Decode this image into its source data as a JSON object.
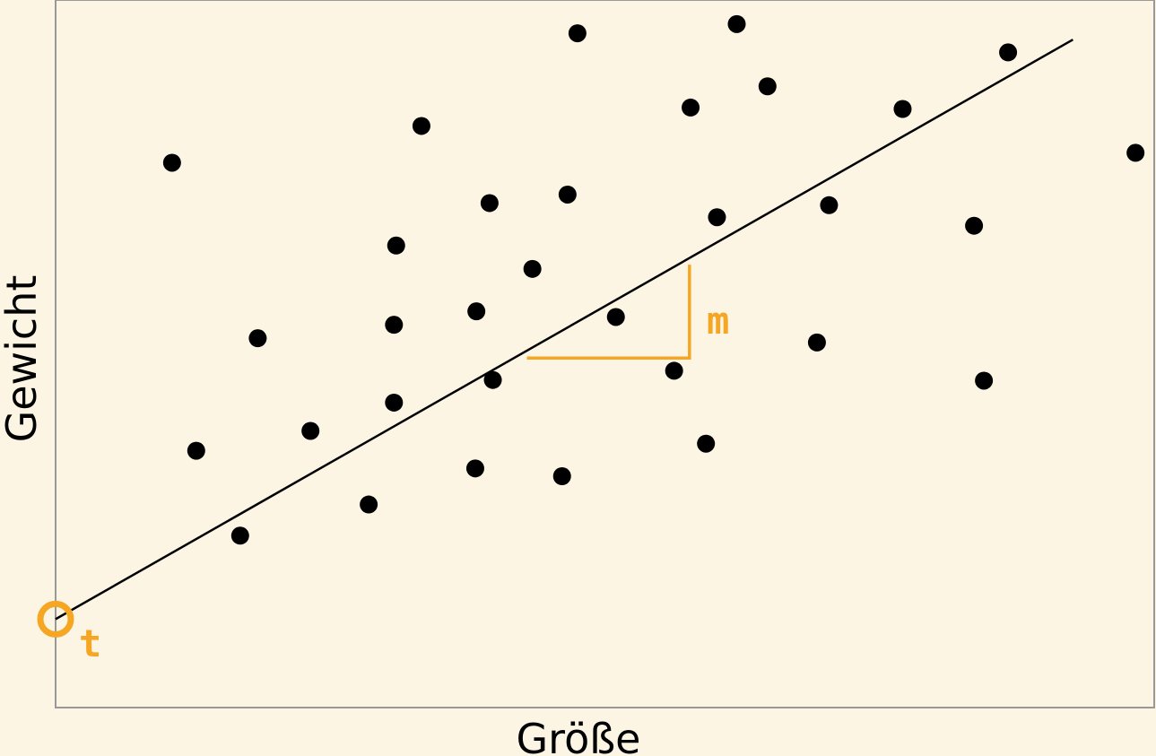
{
  "chart_data": {
    "type": "scatter",
    "xlabel": "Größe",
    "ylabel": "Gewicht",
    "xlim": [
      0,
      100
    ],
    "ylim": [
      0,
      100
    ],
    "grid": false,
    "points": [
      {
        "x": 10.6,
        "y": 77.0
      },
      {
        "x": 12.8,
        "y": 36.3
      },
      {
        "x": 16.8,
        "y": 24.3
      },
      {
        "x": 18.4,
        "y": 52.2
      },
      {
        "x": 23.2,
        "y": 39.1
      },
      {
        "x": 28.5,
        "y": 28.7
      },
      {
        "x": 30.8,
        "y": 43.1
      },
      {
        "x": 30.8,
        "y": 54.1
      },
      {
        "x": 31.0,
        "y": 65.3
      },
      {
        "x": 33.3,
        "y": 82.2
      },
      {
        "x": 38.2,
        "y": 33.8
      },
      {
        "x": 38.3,
        "y": 56.0
      },
      {
        "x": 39.5,
        "y": 71.3
      },
      {
        "x": 39.8,
        "y": 46.3
      },
      {
        "x": 43.4,
        "y": 62.0
      },
      {
        "x": 46.1,
        "y": 32.7
      },
      {
        "x": 46.6,
        "y": 72.5
      },
      {
        "x": 47.5,
        "y": 95.3
      },
      {
        "x": 51.0,
        "y": 55.2
      },
      {
        "x": 56.3,
        "y": 47.6
      },
      {
        "x": 57.8,
        "y": 84.8
      },
      {
        "x": 59.2,
        "y": 37.3
      },
      {
        "x": 60.2,
        "y": 69.3
      },
      {
        "x": 62.0,
        "y": 96.6
      },
      {
        "x": 64.8,
        "y": 87.8
      },
      {
        "x": 69.3,
        "y": 51.6
      },
      {
        "x": 70.4,
        "y": 71.0
      },
      {
        "x": 77.1,
        "y": 84.6
      },
      {
        "x": 83.6,
        "y": 68.1
      },
      {
        "x": 84.5,
        "y": 46.2
      },
      {
        "x": 86.7,
        "y": 92.6
      },
      {
        "x": 98.3,
        "y": 78.4
      }
    ],
    "regression_line": {
      "x": [
        0,
        92.6
      ],
      "y": [
        12.5,
        94.4
      ]
    },
    "slope_triangle": {
      "x_start": 42.9,
      "x_end": 57.7,
      "y_base": 49.4,
      "y_top": 62.6
    },
    "annotations": [
      {
        "label": "m",
        "target": "slope"
      },
      {
        "label": "t",
        "target": "intercept"
      }
    ],
    "colors": {
      "background": "#fdf5e3",
      "points": "#000000",
      "line": "#000000",
      "highlight": "#f5a623",
      "frame": "#999999"
    }
  }
}
